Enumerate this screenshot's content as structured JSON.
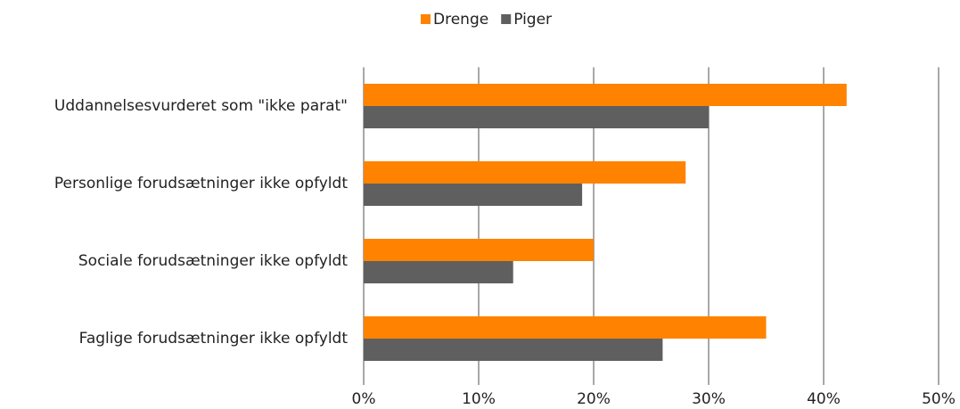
{
  "chart_data": {
    "type": "hbar",
    "categories": [
      "Uddannelsesvurderet som \"ikke parat\"",
      "Personlige forudsætninger ikke opfyldt",
      "Sociale forudsætninger ikke opfyldt",
      "Faglige forudsætninger ikke opfyldt"
    ],
    "series": [
      {
        "name": "Drenge",
        "color": "#ff8200",
        "values": [
          42,
          28,
          20,
          35
        ]
      },
      {
        "name": "Piger",
        "color": "#5f5f5f",
        "values": [
          30,
          19,
          13,
          26
        ]
      }
    ],
    "xlim": [
      0,
      50
    ],
    "xticks": [
      {
        "value": 0,
        "label": "0%"
      },
      {
        "value": 10,
        "label": "10%"
      },
      {
        "value": 20,
        "label": "20%"
      },
      {
        "value": 30,
        "label": "30%"
      },
      {
        "value": 40,
        "label": "40%"
      },
      {
        "value": 50,
        "label": "50%"
      }
    ],
    "grid": true,
    "legend": "top"
  }
}
